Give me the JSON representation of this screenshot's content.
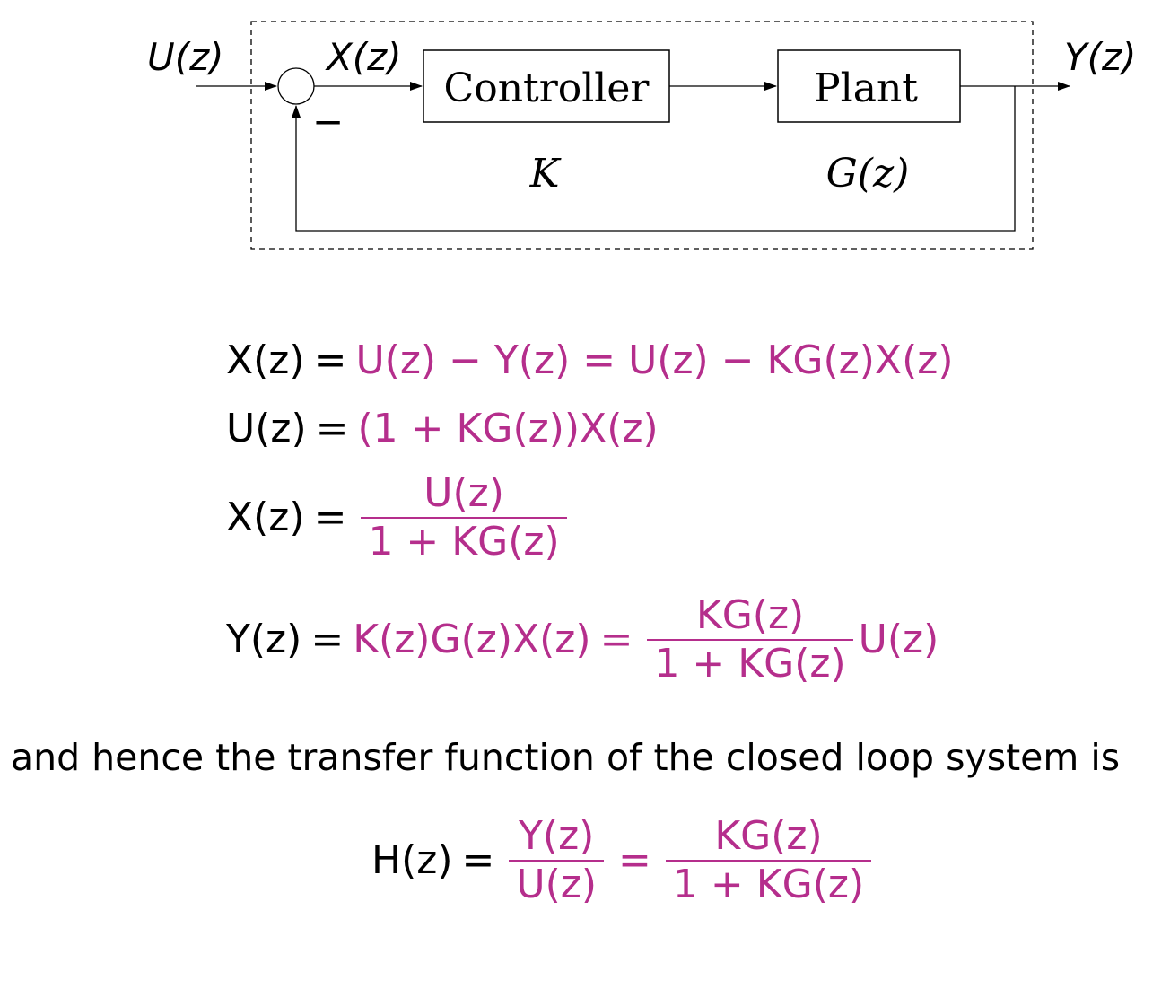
{
  "diagram": {
    "input_label": "U(z)",
    "error_label": "X(z)",
    "output_label": "Y(z)",
    "minus_sign": "−",
    "controller_label": "Controller",
    "plant_label": "Plant",
    "controller_gain": "K",
    "plant_tf": "G(z)"
  },
  "equations": {
    "eq1": {
      "lhs": "X(z)",
      "eq": "=",
      "rhs": "U(z) − Y(z) = U(z) − KG(z)X(z)"
    },
    "eq2": {
      "lhs": "U(z)",
      "eq": "=",
      "rhs": "(1 + KG(z))X(z)"
    },
    "eq3": {
      "lhs": "X(z)",
      "eq": "=",
      "num": "U(z)",
      "den": "1 + KG(z)"
    },
    "eq4": {
      "lhs": "Y(z)",
      "eq": "=",
      "rhs_pre": "K(z)G(z)X(z)",
      "eq2": "=",
      "num": "KG(z)",
      "den": "1 + KG(z)",
      "rhs_post": "U(z)"
    }
  },
  "sentence": "and hence the transfer function of the closed loop system is",
  "final": {
    "lhs": "H(z)",
    "eq": "=",
    "num1": "Y(z)",
    "den1": "U(z)",
    "eq2": "=",
    "num2": "KG(z)",
    "den2": "1 + KG(z)"
  },
  "colors": {
    "highlight": "#b52e8c",
    "text": "#000000"
  }
}
